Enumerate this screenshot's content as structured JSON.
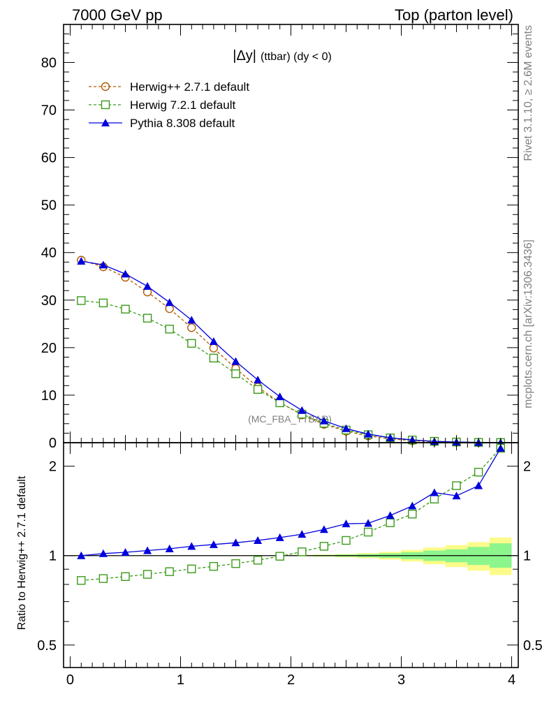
{
  "header": {
    "energy": "7000 GeV pp",
    "process": "Top (parton level)"
  },
  "side_labels": {
    "rivet": "Rivet 3.1.10, ≥ 2.6M events",
    "source": "mcplots.cern.ch [arXiv:1306.3436]"
  },
  "watermark": "(MC_FBA_TTBAR)",
  "plot_title": {
    "main": "|Δy|",
    "sub": "(ttbar) (dy < 0)"
  },
  "colors": {
    "herwigpp": "#b35900",
    "herwig7": "#3a9a1a",
    "pythia": "#0000dd",
    "band_inner": "#8cf58c",
    "band_outer": "#fbfb8a"
  },
  "chart_data": [
    {
      "type": "line",
      "panel": "main",
      "x": [
        0.1,
        0.3,
        0.5,
        0.7,
        0.9,
        1.1,
        1.3,
        1.5,
        1.7,
        1.9,
        2.1,
        2.3,
        2.5,
        2.7,
        2.9,
        3.1,
        3.3,
        3.5,
        3.7,
        3.9
      ],
      "xlim": [
        -0.06,
        4.06
      ],
      "ylim": [
        0,
        88
      ],
      "yticks": [
        0,
        10,
        20,
        30,
        40,
        50,
        60,
        70,
        80
      ],
      "legend_position": "top-left",
      "series": [
        {
          "name": "Herwig++ 2.7.1 default",
          "marker": "circle-open",
          "style": "dashed",
          "values": [
            38.4,
            37.0,
            34.8,
            31.7,
            28.2,
            24.2,
            19.9,
            15.6,
            11.7,
            8.45,
            5.85,
            3.86,
            2.42,
            1.43,
            0.8,
            0.42,
            0.2,
            0.09,
            0.04,
            0.02
          ]
        },
        {
          "name": "Herwig 7.2.1 default",
          "marker": "square-open",
          "style": "dashed",
          "values": [
            29.9,
            29.4,
            28.1,
            26.2,
            23.9,
            20.9,
            17.8,
            14.5,
            11.2,
            8.39,
            6.0,
            4.08,
            2.66,
            1.68,
            1.01,
            0.57,
            0.29,
            0.14,
            0.07,
            0.03
          ]
        },
        {
          "name": "Pythia 8.308 default",
          "marker": "triangle-filled",
          "style": "solid",
          "values": [
            38.2,
            37.4,
            35.5,
            32.9,
            29.5,
            25.8,
            21.3,
            17.1,
            13.2,
            9.67,
            6.8,
            4.6,
            2.97,
            1.81,
            1.04,
            0.58,
            0.28,
            0.14,
            0.06,
            0.03
          ]
        }
      ]
    },
    {
      "type": "line",
      "panel": "ratio",
      "ylabel": "Ratio to Herwig++ 2.7.1 default",
      "x": [
        0.1,
        0.3,
        0.5,
        0.7,
        0.9,
        1.1,
        1.3,
        1.5,
        1.7,
        1.9,
        2.1,
        2.3,
        2.5,
        2.7,
        2.9,
        3.1,
        3.3,
        3.5,
        3.7,
        3.9
      ],
      "xlim": [
        -0.06,
        4.06
      ],
      "xticks": [
        0,
        1,
        2,
        3,
        4
      ],
      "ylim": [
        0.42,
        2.4
      ],
      "yscale": "log",
      "yticks": [
        0.5,
        1,
        2
      ],
      "series": [
        {
          "name": "Herwig 7.2.1 default",
          "marker": "square-open",
          "style": "dashed",
          "values": [
            0.825,
            0.837,
            0.85,
            0.865,
            0.883,
            0.902,
            0.92,
            0.94,
            0.965,
            0.995,
            1.03,
            1.075,
            1.125,
            1.2,
            1.29,
            1.38,
            1.55,
            1.72,
            1.91,
            2.3
          ]
        },
        {
          "name": "Pythia 8.308 default",
          "marker": "triangle-filled",
          "style": "solid",
          "values": [
            1.0,
            1.016,
            1.026,
            1.04,
            1.055,
            1.075,
            1.09,
            1.105,
            1.125,
            1.15,
            1.18,
            1.225,
            1.28,
            1.285,
            1.365,
            1.47,
            1.63,
            1.59,
            1.72,
            2.3
          ]
        },
        {
          "name": "stat uncertainty (inner)",
          "band": true,
          "low": [
            1.0,
            1.0,
            1.0,
            1.0,
            1.0,
            1.0,
            1.0,
            1.0,
            0.999,
            0.998,
            0.997,
            0.995,
            0.992,
            0.988,
            0.982,
            0.973,
            0.96,
            0.95,
            0.93,
            0.91
          ],
          "high": [
            1.0,
            1.0,
            1.0,
            1.0,
            1.0,
            1.0,
            1.0,
            1.0,
            1.001,
            1.002,
            1.003,
            1.005,
            1.008,
            1.012,
            1.018,
            1.027,
            1.04,
            1.05,
            1.07,
            1.1
          ]
        },
        {
          "name": "stat uncertainty (outer)",
          "band": true,
          "low": [
            1.0,
            1.0,
            1.0,
            1.0,
            1.0,
            1.0,
            1.0,
            0.999,
            0.998,
            0.997,
            0.995,
            0.992,
            0.987,
            0.98,
            0.97,
            0.955,
            0.935,
            0.915,
            0.89,
            0.86
          ],
          "high": [
            1.0,
            1.0,
            1.0,
            1.0,
            1.0,
            1.0,
            1.0,
            1.001,
            1.002,
            1.003,
            1.005,
            1.008,
            1.013,
            1.02,
            1.03,
            1.045,
            1.065,
            1.085,
            1.11,
            1.15
          ]
        }
      ]
    }
  ]
}
